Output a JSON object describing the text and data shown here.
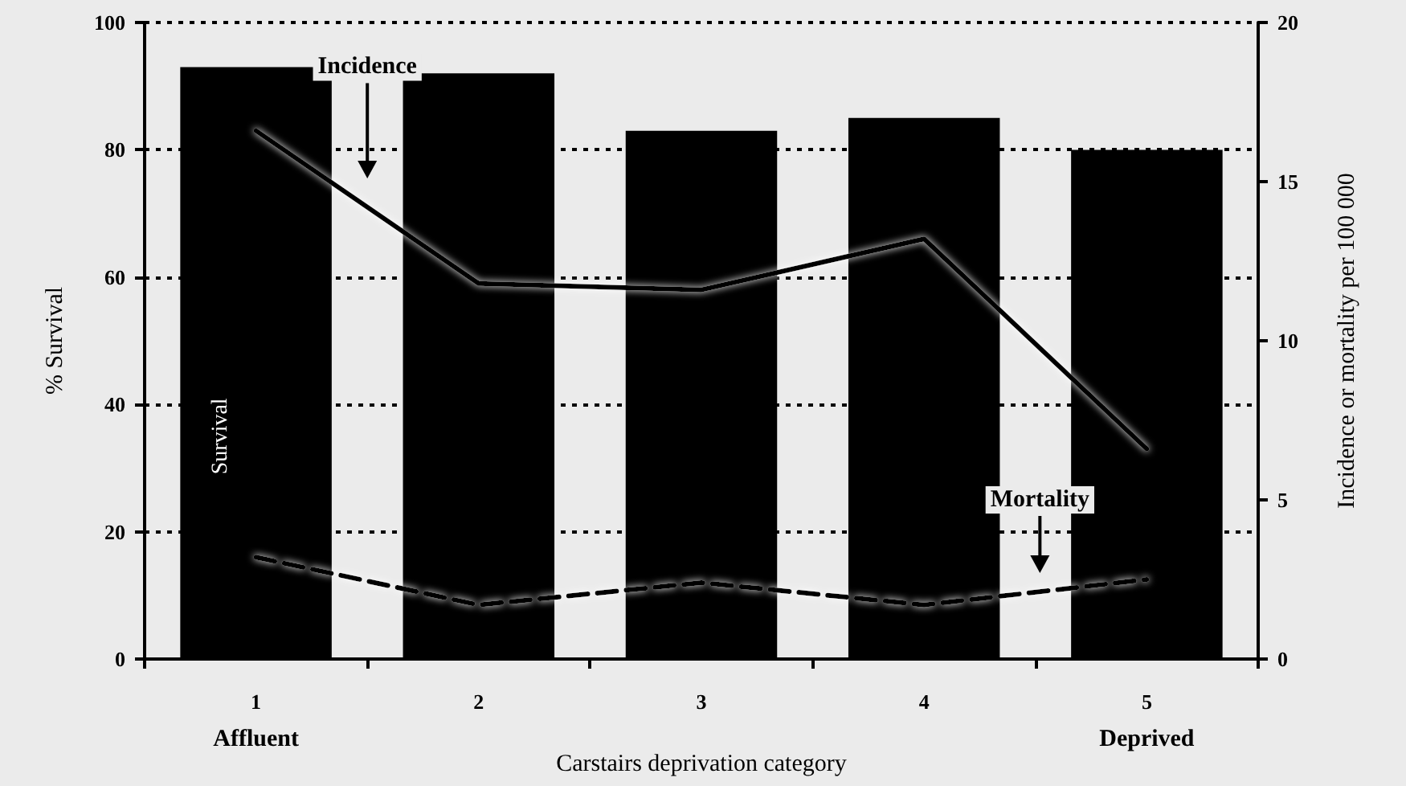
{
  "chart_data": {
    "type": "bar",
    "xlabel": "Carstairs deprivation category",
    "ylabel": "% Survival",
    "y2label": "Incidence or mortality per 100 000",
    "categories": [
      "1",
      "2",
      "3",
      "4",
      "5"
    ],
    "series": [
      {
        "color": "#000000",
        "values": [
          93,
          92,
          83,
          85,
          80
        ]
      },
      {
        "type": "line",
        "axis": "y2",
        "color": "#000000",
        "line_style": "solid",
        "values": [
          16.6,
          11.8,
          11.6,
          13.2,
          6.6
        ]
      },
      {
        "type": "line",
        "axis": "y2",
        "color": "#000000",
        "line_style": "dashed",
        "values": [
          3.2,
          1.7,
          2.4,
          1.7,
          2.5
        ]
      }
    ],
    "ylim": [
      0,
      100
    ],
    "yticks": [
      0,
      20,
      40,
      60,
      80,
      100
    ],
    "y2lim": [
      0,
      20
    ],
    "y2ticks": [
      0,
      5,
      10,
      15,
      20
    ],
    "grid": "y",
    "marker": "none",
    "annotations": [
      "Incidence",
      "Mortality",
      "Survival",
      "Affluent",
      "Deprived"
    ]
  }
}
